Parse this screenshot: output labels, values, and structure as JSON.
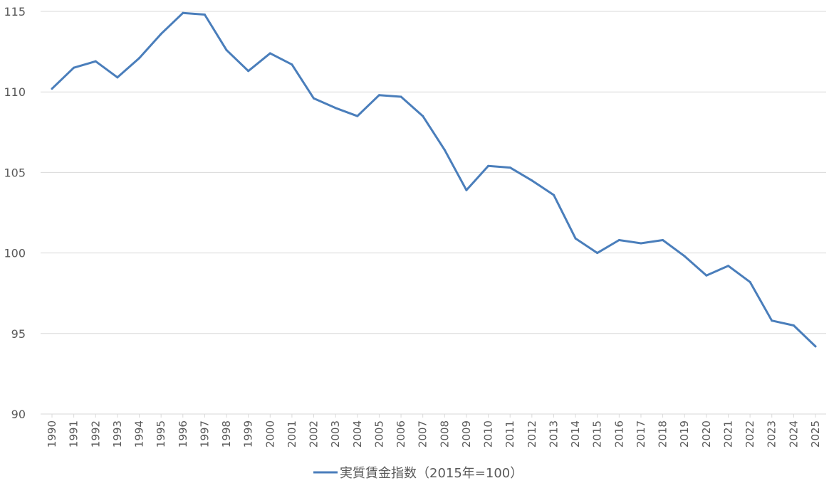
{
  "chart_data": {
    "type": "line",
    "x": [
      "1990",
      "1991",
      "1992",
      "1993",
      "1994",
      "1995",
      "1996",
      "1997",
      "1998",
      "1999",
      "2000",
      "2001",
      "2002",
      "2003",
      "2004",
      "2005",
      "2006",
      "2007",
      "2008",
      "2009",
      "2010",
      "2011",
      "2012",
      "2013",
      "2014",
      "2015",
      "2016",
      "2017",
      "2018",
      "2019",
      "2020",
      "2021",
      "2022",
      "2023",
      "2024",
      "2025"
    ],
    "series": [
      {
        "name": "実質賃金指数（2015年=100）",
        "color": "#4a7ebb",
        "values": [
          110.2,
          111.5,
          111.9,
          110.9,
          112.1,
          113.6,
          114.9,
          114.8,
          112.6,
          111.3,
          112.4,
          111.7,
          109.6,
          109.0,
          108.5,
          109.8,
          109.7,
          108.5,
          106.4,
          103.9,
          105.4,
          105.3,
          104.5,
          103.6,
          100.9,
          100.0,
          100.8,
          100.6,
          100.8,
          99.8,
          98.6,
          99.2,
          98.2,
          95.8,
          95.5,
          94.2
        ]
      }
    ],
    "y_ticks": [
      "90",
      "95",
      "100",
      "105",
      "110",
      "115"
    ],
    "ylim": [
      90,
      115
    ],
    "grid": true,
    "legend_position": "bottom",
    "title": "",
    "xlabel": "",
    "ylabel": ""
  }
}
